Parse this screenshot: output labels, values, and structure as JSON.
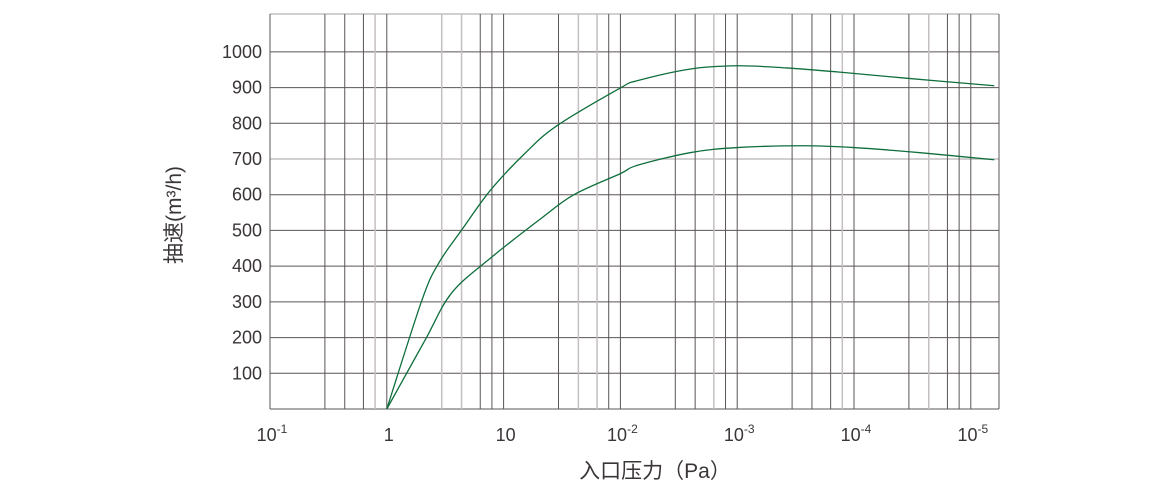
{
  "chart_data": {
    "type": "line",
    "title": "",
    "xlabel": "入口压力（Pa）",
    "ylabel": "抽速(m³/h)",
    "x_scale": "log",
    "x_direction": "decreasing",
    "x_tick_labels": [
      {
        "base": "10",
        "exp": "-1"
      },
      {
        "base": "1",
        "exp": ""
      },
      {
        "base": "10",
        "exp": ""
      },
      {
        "base": "10",
        "exp": "-2"
      },
      {
        "base": "10",
        "exp": "-3"
      },
      {
        "base": "10",
        "exp": "-4"
      },
      {
        "base": "10",
        "exp": "-5"
      }
    ],
    "y_ticks": [
      100,
      200,
      300,
      400,
      500,
      600,
      700,
      800,
      900,
      1000
    ],
    "ylim": [
      0,
      1106
    ],
    "grid": true,
    "line_color": "#0e6e3c",
    "series": [
      {
        "points": [
          [
            1,
            0
          ],
          [
            0.5,
            305
          ],
          [
            0.36,
            408
          ],
          [
            0.23,
            500
          ],
          [
            0.13,
            612
          ],
          [
            0.066,
            715
          ],
          [
            0.035,
            793
          ],
          [
            0.01,
            899
          ],
          [
            0.0072,
            919
          ],
          [
            0.0025,
            952
          ],
          [
            0.001,
            961
          ],
          [
            0.00038,
            955
          ],
          [
            0.00014,
            944
          ],
          [
            3.8e-05,
            927
          ],
          [
            6.3e-06,
            905
          ]
        ]
      },
      {
        "points": [
          [
            1,
            0
          ],
          [
            0.47,
            193
          ],
          [
            0.28,
            324
          ],
          [
            0.13,
            422
          ],
          [
            0.048,
            533
          ],
          [
            0.025,
            600
          ],
          [
            0.01,
            659
          ],
          [
            0.0072,
            682
          ],
          [
            0.0025,
            718
          ],
          [
            0.001,
            732
          ],
          [
            0.00027,
            737
          ],
          [
            0.0001,
            732
          ],
          [
            2.8e-05,
            718
          ],
          [
            6.3e-06,
            698
          ]
        ]
      }
    ]
  }
}
